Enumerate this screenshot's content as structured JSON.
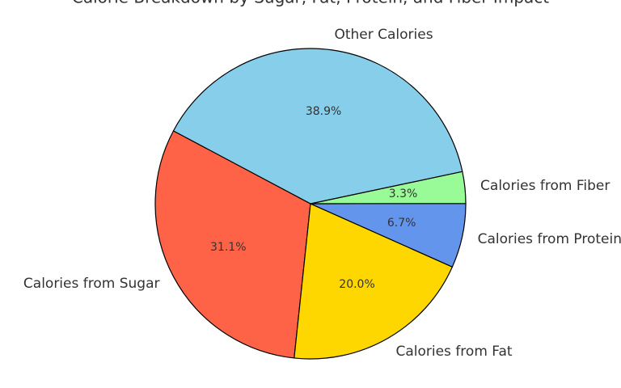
{
  "chart_data": {
    "type": "pie",
    "title": "Calorie Breakdown by Sugar, Fat, Protein, and Fiber Impact",
    "categories": [
      "Calories from Sugar",
      "Calories from Fat",
      "Calories from Protein",
      "Calories from Fiber",
      "Other Calories"
    ],
    "values": [
      31.1,
      20.0,
      6.7,
      3.3,
      38.9
    ],
    "value_labels": [
      "31.1%",
      "20.0%",
      "6.7%",
      "3.3%",
      "38.9%"
    ],
    "colors": [
      "#ff6347",
      "#ffd700",
      "#6495ed",
      "#98fb98",
      "#87ceeb"
    ]
  }
}
